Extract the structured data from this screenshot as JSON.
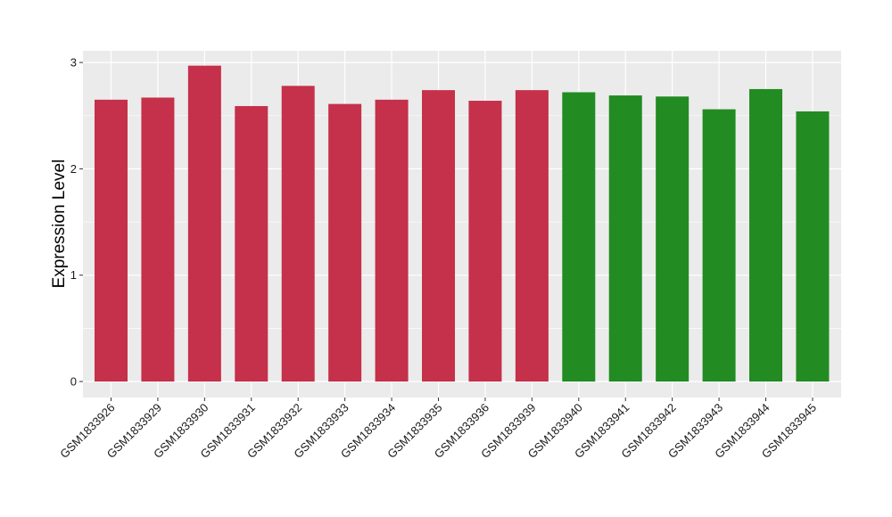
{
  "chart_data": {
    "type": "bar",
    "title": "",
    "xlabel": "",
    "ylabel": "Expression Level",
    "ylim": [
      0,
      3.15
    ],
    "yticks": [
      0,
      1,
      2,
      3
    ],
    "grid": true,
    "legend": "none",
    "colors": {
      "group1": "#C5304A",
      "group2": "#228B22",
      "panel": "#EBEBEB",
      "grid": "#FFFFFF"
    },
    "categories": [
      "GSM1833926",
      "GSM1833929",
      "GSM1833930",
      "GSM1833931",
      "GSM1833932",
      "GSM1833933",
      "GSM1833934",
      "GSM1833935",
      "GSM1833936",
      "GSM1833939",
      "GSM1833940",
      "GSM1833941",
      "GSM1833942",
      "GSM1833943",
      "GSM1833944",
      "GSM1833945"
    ],
    "values": [
      2.65,
      2.67,
      2.97,
      2.59,
      2.78,
      2.61,
      2.65,
      2.74,
      2.64,
      2.74,
      2.72,
      2.69,
      2.68,
      2.56,
      2.75,
      2.54
    ],
    "groups": [
      1,
      1,
      1,
      1,
      1,
      1,
      1,
      1,
      1,
      1,
      2,
      2,
      2,
      2,
      2,
      2
    ]
  }
}
